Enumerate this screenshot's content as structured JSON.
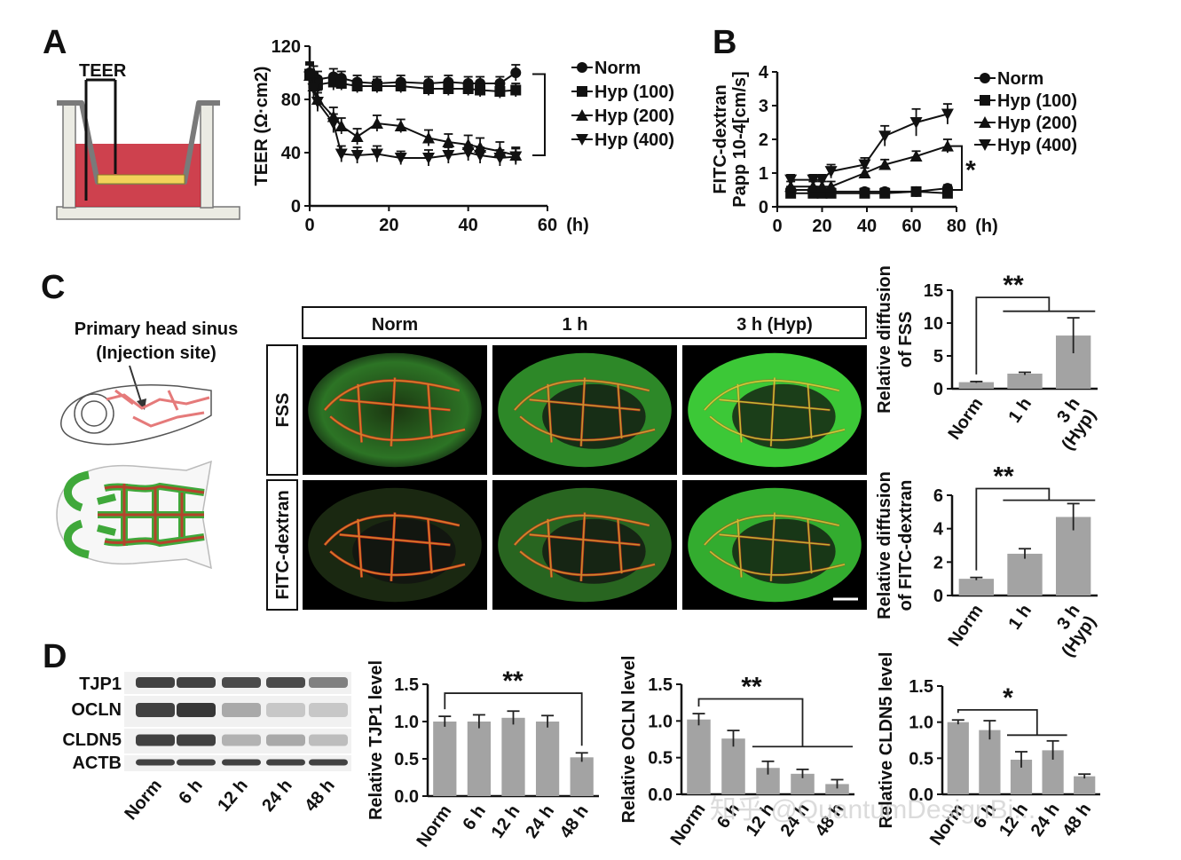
{
  "panels": {
    "a": "A",
    "b": "B",
    "c": "C",
    "d": "D"
  },
  "watermark": "知乎 @QuantumDesignBi...",
  "colors": {
    "bar": "#a3a3a3",
    "axis": "#111111",
    "tissue": "#c5202f",
    "vessel_red": "#d52a1c",
    "vessel_yellow": "#e8e23a",
    "dye_green": "#37b34a"
  },
  "schematic_a": {
    "label": "TEER"
  },
  "schematic_c": {
    "label_line1": "Primary head sinus",
    "label_line2": "(Injection site)"
  },
  "image_grid": {
    "columns": [
      "Norm",
      "1 h",
      "3 h (Hyp)"
    ],
    "rows": [
      "FSS",
      "FITC-dextran"
    ]
  },
  "blot": {
    "proteins": [
      "TJP1",
      "OCLN",
      "CLDN5",
      "ACTB"
    ],
    "lanes": [
      "Norm",
      "6 h",
      "12 h",
      "24 h",
      "48 h"
    ]
  },
  "chart_data": [
    {
      "id": "teer",
      "type": "line",
      "ylabel": "TEER (Ω·cm2)",
      "xunit": "(h)",
      "xlim": [
        0,
        60
      ],
      "ylim": [
        0,
        120
      ],
      "xticks": [
        0,
        20,
        40,
        60
      ],
      "yticks": [
        0,
        40,
        80,
        120
      ],
      "legend": "right",
      "significance": "",
      "series": [
        {
          "name": "Norm",
          "marker": "circle",
          "x": [
            0,
            1,
            2,
            6,
            8,
            12,
            17,
            23,
            30,
            35,
            40,
            43,
            48,
            52
          ],
          "y": [
            100,
            98,
            95,
            97,
            96,
            93,
            92,
            93,
            92,
            93,
            92,
            92,
            92,
            100
          ],
          "err": [
            8,
            7,
            6,
            6,
            5,
            5,
            5,
            5,
            5,
            5,
            5,
            5,
            5,
            6
          ]
        },
        {
          "name": "Hyp (100)",
          "marker": "square",
          "x": [
            0,
            1,
            2,
            6,
            8,
            12,
            17,
            23,
            30,
            35,
            40,
            43,
            48,
            52
          ],
          "y": [
            99,
            92,
            91,
            93,
            92,
            90,
            90,
            90,
            88,
            88,
            88,
            87,
            86,
            87
          ],
          "err": [
            8,
            7,
            6,
            6,
            5,
            5,
            5,
            5,
            5,
            5,
            5,
            5,
            5,
            5
          ]
        },
        {
          "name": "Hyp (200)",
          "marker": "triangle-up",
          "x": [
            0,
            1,
            2,
            6,
            8,
            12,
            17,
            23,
            30,
            35,
            40,
            43,
            48,
            52
          ],
          "y": [
            98,
            90,
            80,
            67,
            60,
            52,
            62,
            60,
            51,
            48,
            46,
            44,
            41,
            38
          ],
          "err": [
            9,
            8,
            7,
            7,
            6,
            6,
            6,
            5,
            6,
            6,
            7,
            7,
            7,
            6
          ]
        },
        {
          "name": "Hyp (400)",
          "marker": "triangle-down",
          "x": [
            0,
            1,
            2,
            6,
            8,
            12,
            17,
            23,
            30,
            35,
            40,
            43,
            48,
            52
          ],
          "y": [
            97,
            88,
            78,
            62,
            39,
            38,
            39,
            36,
            36,
            38,
            40,
            38,
            36,
            37
          ],
          "err": [
            9,
            8,
            7,
            7,
            6,
            6,
            6,
            5,
            6,
            6,
            6,
            6,
            6,
            6
          ]
        }
      ]
    },
    {
      "id": "papp",
      "type": "line",
      "ylabel": "FITC-dextran\nPapp 10-4[cm/s]",
      "xunit": "(h)",
      "xlim": [
        0,
        80
      ],
      "ylim": [
        0,
        4
      ],
      "xticks": [
        0,
        20,
        40,
        60,
        80
      ],
      "yticks": [
        0,
        1,
        2,
        3,
        4
      ],
      "legend": "right",
      "significance": "*",
      "series": [
        {
          "name": "Norm",
          "marker": "circle",
          "x": [
            6,
            16,
            20,
            24,
            39,
            48,
            62,
            76
          ],
          "y": [
            0.5,
            0.5,
            0.45,
            0.45,
            0.45,
            0.45,
            0.45,
            0.55
          ],
          "err": [
            0.1,
            0.1,
            0.1,
            0.1,
            0.1,
            0.1,
            0.1,
            0.1
          ]
        },
        {
          "name": "Hyp (100)",
          "marker": "square",
          "x": [
            6,
            16,
            20,
            24,
            39,
            48,
            62,
            76
          ],
          "y": [
            0.4,
            0.4,
            0.4,
            0.4,
            0.4,
            0.4,
            0.45,
            0.4
          ],
          "err": [
            0.1,
            0.1,
            0.1,
            0.1,
            0.1,
            0.1,
            0.1,
            0.1
          ]
        },
        {
          "name": "Hyp (200)",
          "marker": "triangle-up",
          "x": [
            6,
            16,
            20,
            24,
            39,
            48,
            62,
            76
          ],
          "y": [
            0.6,
            0.6,
            0.6,
            0.6,
            1.0,
            1.25,
            1.5,
            1.8
          ],
          "err": [
            0.15,
            0.15,
            0.15,
            0.15,
            0.15,
            0.15,
            0.15,
            0.2
          ]
        },
        {
          "name": "Hyp (400)",
          "marker": "triangle-down",
          "x": [
            6,
            16,
            20,
            24,
            39,
            48,
            62,
            76
          ],
          "y": [
            0.8,
            0.8,
            0.8,
            1.05,
            1.25,
            2.1,
            2.5,
            2.75
          ],
          "err": [
            0.15,
            0.15,
            0.15,
            0.2,
            0.2,
            0.3,
            0.4,
            0.3
          ]
        }
      ]
    },
    {
      "id": "fss",
      "type": "bar",
      "ylabel": "Relative diffusion\nof FSS",
      "categories": [
        "Norm",
        "1 h",
        "3 h\n(Hyp)"
      ],
      "values": [
        1.0,
        2.3,
        8.1
      ],
      "err": [
        0.1,
        0.2,
        2.7
      ],
      "ylim": [
        0,
        15
      ],
      "yticks": [
        0,
        5,
        10,
        15
      ],
      "yticklabels": [
        "0",
        "5",
        "10",
        "15"
      ],
      "significance": "**"
    },
    {
      "id": "fitc",
      "type": "bar",
      "ylabel": "Relative diffusion\nof FITC-dextran",
      "categories": [
        "Norm",
        "1 h",
        "3 h\n(Hyp)"
      ],
      "values": [
        1.0,
        2.5,
        4.7
      ],
      "err": [
        0.08,
        0.3,
        0.8
      ],
      "ylim": [
        0,
        6
      ],
      "yticks": [
        0,
        2,
        4,
        6
      ],
      "yticklabels": [
        "0",
        "2",
        "4",
        "6"
      ],
      "significance": "**"
    },
    {
      "id": "tjp1",
      "type": "bar",
      "ylabel": "Relative TJP1 level",
      "categories": [
        "Norm",
        "6 h",
        "12 h",
        "24 h",
        "48 h"
      ],
      "values": [
        1.0,
        1.0,
        1.05,
        1.0,
        0.52
      ],
      "err": [
        0.07,
        0.09,
        0.09,
        0.08,
        0.06
      ],
      "ylim": [
        0,
        1.5
      ],
      "yticks": [
        0,
        0.5,
        1.0,
        1.5
      ],
      "yticklabels": [
        "0.0",
        "0.5",
        "1.0",
        "1.5"
      ],
      "significance": "**"
    },
    {
      "id": "ocln",
      "type": "bar",
      "ylabel": "Relative OCLN level",
      "categories": [
        "Norm",
        "6 h",
        "12 h",
        "24 h",
        "48 h"
      ],
      "values": [
        1.02,
        0.76,
        0.36,
        0.28,
        0.14
      ],
      "err": [
        0.08,
        0.11,
        0.09,
        0.06,
        0.06
      ],
      "ylim": [
        0,
        1.5
      ],
      "yticks": [
        0,
        0.5,
        1.0,
        1.5
      ],
      "yticklabels": [
        "0.0",
        "0.5",
        "1.0",
        "1.5"
      ],
      "significance": "**"
    },
    {
      "id": "cldn5",
      "type": "bar",
      "ylabel": "Relative CLDN5 level",
      "categories": [
        "Norm",
        "6 h",
        "12 h",
        "24 h",
        "48 h"
      ],
      "values": [
        1.0,
        0.89,
        0.48,
        0.61,
        0.25
      ],
      "err": [
        0.03,
        0.13,
        0.11,
        0.13,
        0.03
      ],
      "ylim": [
        0,
        1.5
      ],
      "yticks": [
        0,
        0.5,
        1.0,
        1.5
      ],
      "yticklabels": [
        "0.0",
        "0.5",
        "1.0",
        "1.5"
      ],
      "significance": "*"
    }
  ]
}
